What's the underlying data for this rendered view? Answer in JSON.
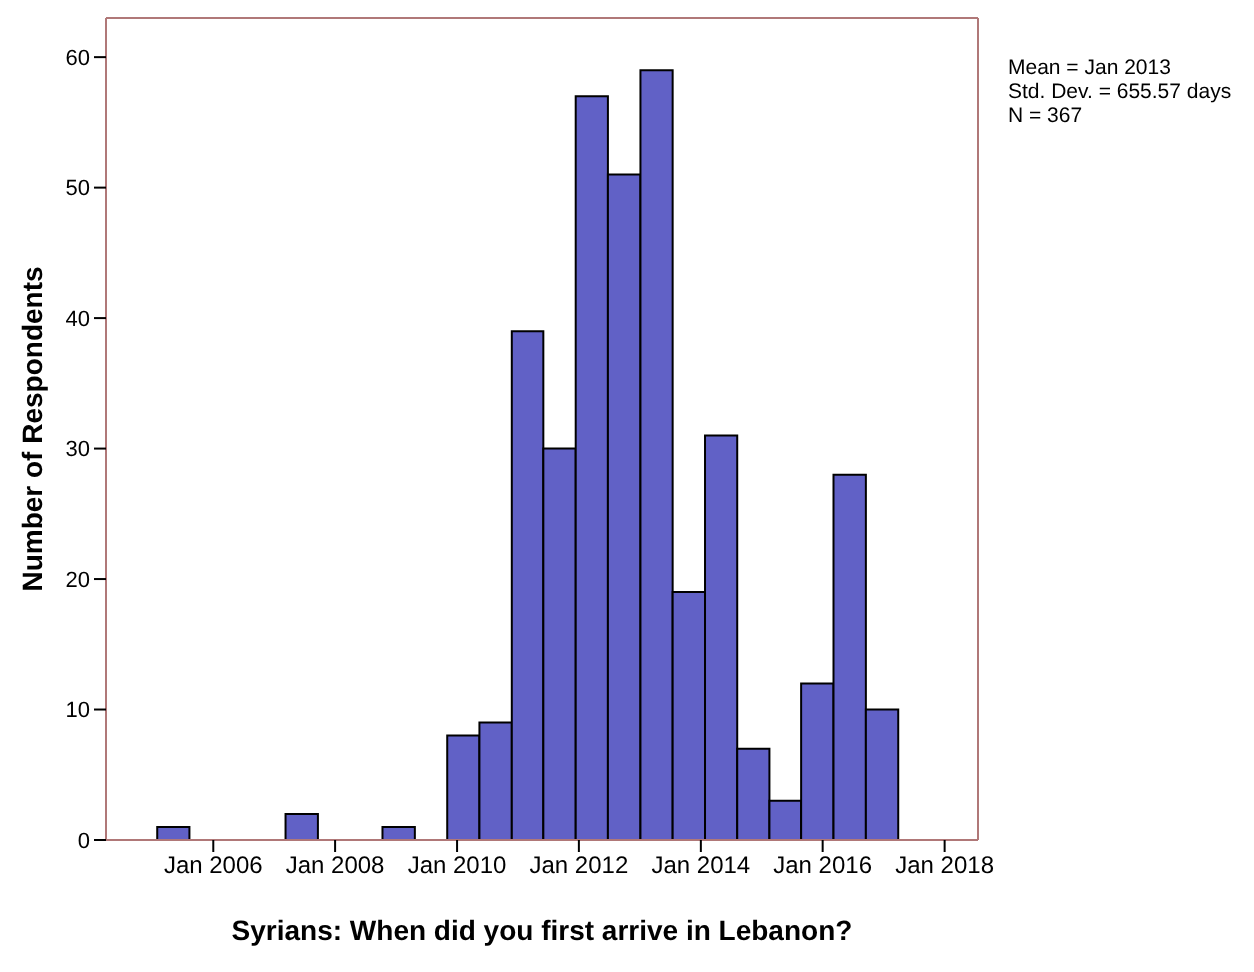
{
  "chart_data": {
    "type": "histogram",
    "xlabel": "Syrians: When did you first arrive in Lebanon?",
    "ylabel": "Number of Respondents",
    "bins": [
      "2005-01-30",
      "2005-08-11",
      "2007-03-10",
      "2007-09-20",
      "2008-10-11",
      "2009-04-23",
      "2009-11-03",
      "2010-05-15",
      "2010-11-25",
      "2011-06-02",
      "2011-12-13",
      "2012-06-23",
      "2013-01-04",
      "2013-07-16",
      "2014-01-26",
      "2014-08-07",
      "2015-02-16",
      "2015-08-25",
      "2016-03-06",
      "2016-09-16",
      "2017-03-29"
    ],
    "values": [
      1,
      0,
      2,
      0,
      1,
      0,
      8,
      9,
      39,
      30,
      57,
      51,
      59,
      19,
      31,
      7,
      3,
      12,
      28,
      10
    ],
    "color": "#6161c6",
    "xlim": [
      "2004-03-29",
      "2018-07-20"
    ],
    "xticks": [
      {
        "value": "2006-01",
        "label": "Jan 2006"
      },
      {
        "value": "2008-01",
        "label": "Jan 2008"
      },
      {
        "value": "2010-01",
        "label": "Jan 2010"
      },
      {
        "value": "2012-01",
        "label": "Jan 2012"
      },
      {
        "value": "2014-01",
        "label": "Jan 2014"
      },
      {
        "value": "2016-01",
        "label": "Jan 2016"
      },
      {
        "value": "2018-01",
        "label": "Jan 2018"
      }
    ],
    "ylim": [
      0,
      63
    ],
    "yticks": [
      0,
      10,
      20,
      30,
      40,
      50,
      60
    ],
    "annotations": [
      "Mean = Jan 2013",
      "Std. Dev. = 655.57 days",
      "N = 367"
    ]
  }
}
